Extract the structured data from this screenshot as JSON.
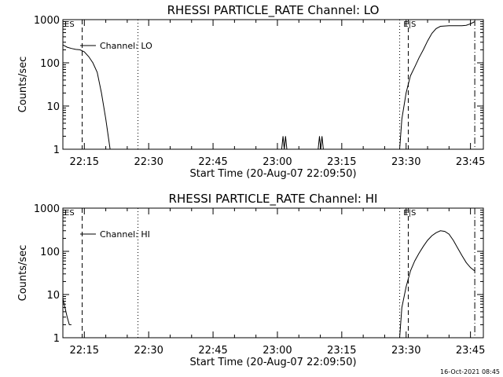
{
  "colors": {
    "background": "#ffffff",
    "foreground": "#000000"
  },
  "footer": "16-Oct-2021 08:45",
  "chart_data": [
    {
      "type": "line",
      "title": "RHESSI PARTICLE_RATE Channel: LO",
      "xlabel": "Start Time (20-Aug-07 22:09:50)",
      "ylabel": "Counts/sec",
      "yscale": "log",
      "ylim": [
        1,
        1000
      ],
      "xlim": [
        "22:10",
        "23:48"
      ],
      "x_ticks": [
        "22:15",
        "22:30",
        "22:45",
        "23:00",
        "23:15",
        "23:30",
        "23:45"
      ],
      "y_ticks": [
        "1",
        "10",
        "100",
        "1000"
      ],
      "grid": false,
      "legend": {
        "position": "top-left",
        "entries": [
          "Channel: LO"
        ]
      },
      "flag_labels": [
        {
          "text": "ES",
          "time": "22:10"
        },
        {
          "text": "E|S",
          "time": "23:29"
        }
      ],
      "vlines": [
        {
          "time": "22:14.5",
          "style": "dashed"
        },
        {
          "time": "22:27.5",
          "style": "dotted"
        },
        {
          "time": "23:28.5",
          "style": "dotted"
        },
        {
          "time": "23:30.5",
          "style": "dashed"
        },
        {
          "time": "23:46",
          "style": "dash-dot"
        }
      ],
      "series": [
        {
          "segments": [
            [
              [
                "22:10",
                260
              ],
              [
                "22:11",
                230
              ],
              [
                "22:12",
                215
              ],
              [
                "22:13",
                205
              ],
              [
                "22:14",
                200
              ],
              [
                "22:15",
                180
              ],
              [
                "22:16",
                140
              ],
              [
                "22:17",
                100
              ],
              [
                "22:18",
                60
              ],
              [
                "22:19",
                20
              ],
              [
                "22:20",
                5
              ],
              [
                "22:21",
                1
              ]
            ],
            [
              [
                "23:01",
                1
              ],
              [
                "23:01.3",
                2
              ],
              [
                "23:01.6",
                1
              ],
              [
                "23:01.9",
                2
              ],
              [
                "23:02.2",
                1
              ]
            ],
            [
              [
                "23:09.5",
                1
              ],
              [
                "23:09.8",
                2
              ],
              [
                "23:10.1",
                1
              ],
              [
                "23:10.4",
                2
              ],
              [
                "23:10.7",
                1
              ]
            ],
            [
              [
                "23:28.5",
                1
              ],
              [
                "23:29",
                5
              ],
              [
                "23:30",
                20
              ],
              [
                "23:31",
                50
              ],
              [
                "23:32",
                80
              ],
              [
                "23:33",
                130
              ],
              [
                "23:34",
                200
              ],
              [
                "23:35",
                320
              ],
              [
                "23:36",
                480
              ],
              [
                "23:37",
                620
              ],
              [
                "23:38",
                700
              ],
              [
                "23:40",
                720
              ],
              [
                "23:42",
                720
              ],
              [
                "23:43",
                720
              ],
              [
                "23:44",
                740
              ],
              [
                "23:45",
                800
              ],
              [
                "23:46",
                900
              ]
            ]
          ]
        }
      ]
    },
    {
      "type": "line",
      "title": "RHESSI PARTICLE_RATE Channel: HI",
      "xlabel": "Start Time (20-Aug-07 22:09:50)",
      "ylabel": "Counts/sec",
      "yscale": "log",
      "ylim": [
        1,
        1000
      ],
      "xlim": [
        "22:10",
        "23:48"
      ],
      "x_ticks": [
        "22:15",
        "22:30",
        "22:45",
        "23:00",
        "23:15",
        "23:30",
        "23:45"
      ],
      "y_ticks": [
        "1",
        "10",
        "100",
        "1000"
      ],
      "grid": false,
      "legend": {
        "position": "top-left",
        "entries": [
          "Channel: HI"
        ]
      },
      "flag_labels": [
        {
          "text": "ES",
          "time": "22:10"
        },
        {
          "text": "E|S",
          "time": "23:29"
        }
      ],
      "vlines": [
        {
          "time": "22:14.5",
          "style": "dashed"
        },
        {
          "time": "22:27.5",
          "style": "dotted"
        },
        {
          "time": "23:28.5",
          "style": "dotted"
        },
        {
          "time": "23:30.5",
          "style": "dashed"
        },
        {
          "time": "23:46",
          "style": "dash-dot"
        }
      ],
      "series": [
        {
          "segments": [
            [
              [
                "22:10",
                8
              ],
              [
                "22:10.5",
                5
              ],
              [
                "22:11",
                3
              ],
              [
                "22:11.5",
                2
              ],
              [
                "22:12",
                2
              ]
            ],
            [
              [
                "23:28.5",
                1
              ],
              [
                "23:29",
                5
              ],
              [
                "23:30",
                15
              ],
              [
                "23:31",
                35
              ],
              [
                "23:32",
                60
              ],
              [
                "23:33",
                90
              ],
              [
                "23:34",
                130
              ],
              [
                "23:35",
                180
              ],
              [
                "23:36",
                230
              ],
              [
                "23:37",
                270
              ],
              [
                "23:38",
                300
              ],
              [
                "23:39",
                290
              ],
              [
                "23:40",
                250
              ],
              [
                "23:41",
                180
              ],
              [
                "23:42",
                120
              ],
              [
                "23:43",
                80
              ],
              [
                "23:44",
                55
              ],
              [
                "23:45",
                42
              ],
              [
                "23:46",
                35
              ]
            ]
          ]
        }
      ]
    }
  ]
}
